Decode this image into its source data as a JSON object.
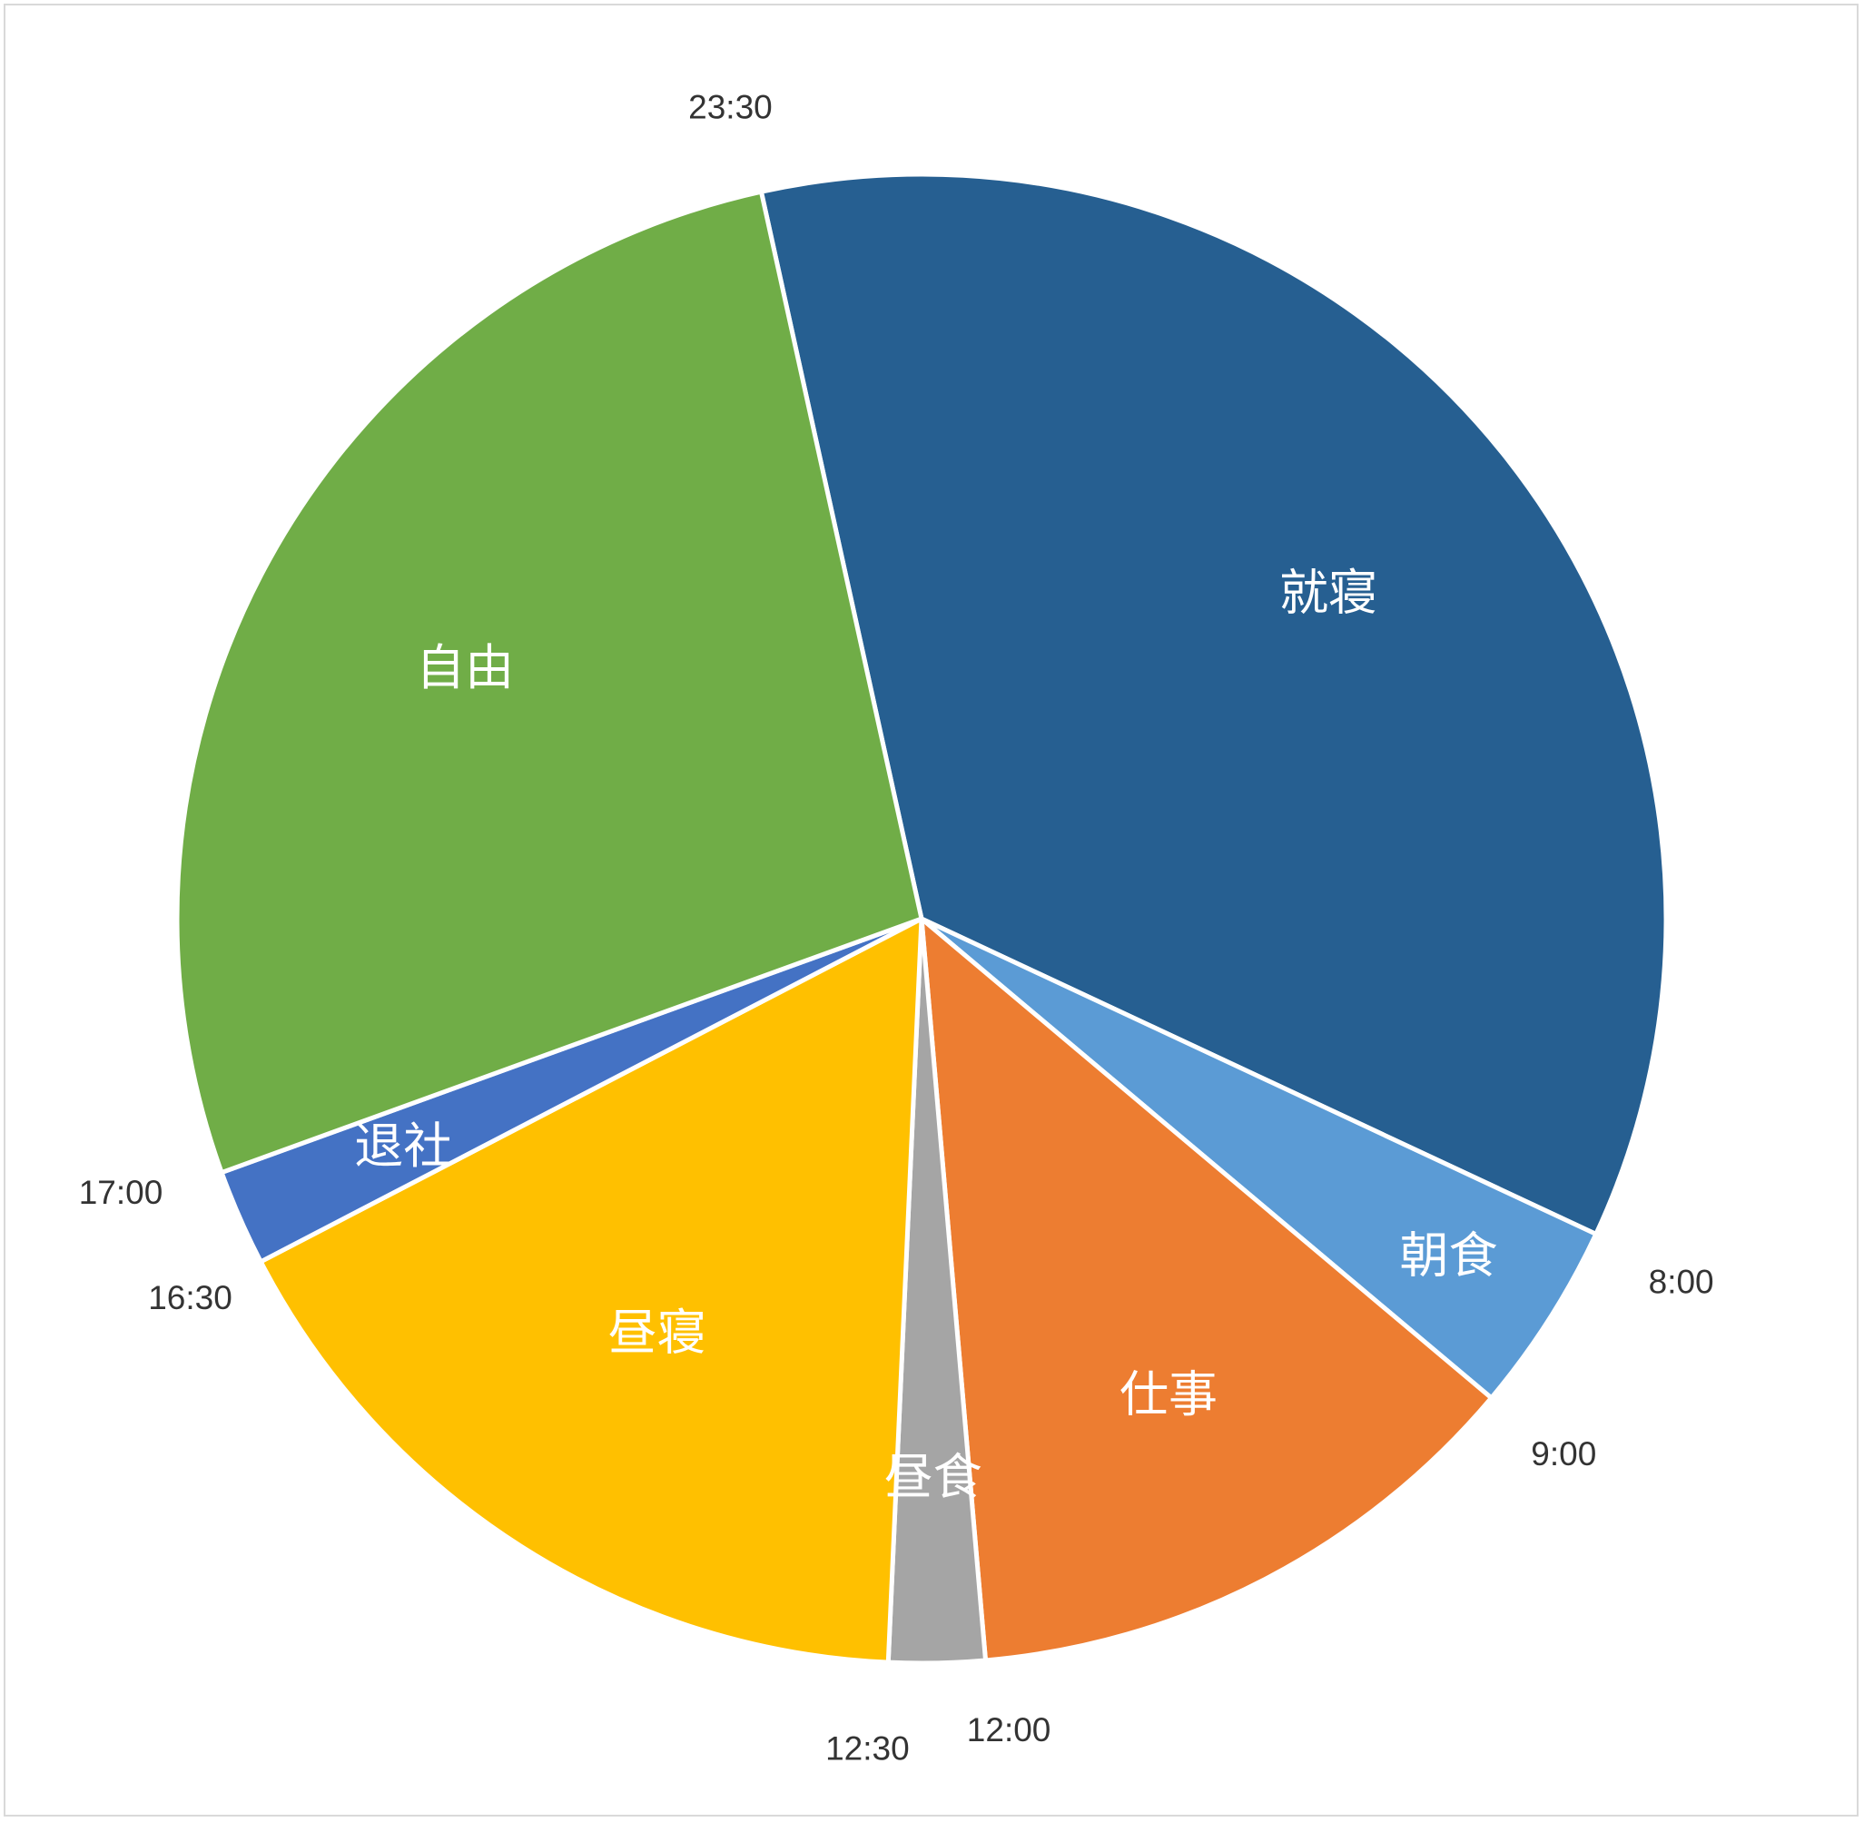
{
  "chart_data": {
    "type": "pie",
    "start_time": "23:30",
    "slices": [
      {
        "label": "就寝",
        "start": "23:30",
        "end": "8:00",
        "hours": 8.5,
        "color": "#265f91"
      },
      {
        "label": "朝食",
        "start": "8:00",
        "end": "9:00",
        "hours": 1.0,
        "color": "#5b9bd5"
      },
      {
        "label": "仕事",
        "start": "9:00",
        "end": "12:00",
        "hours": 3.0,
        "color": "#ed7d31"
      },
      {
        "label": "昼食",
        "start": "12:00",
        "end": "12:30",
        "hours": 0.5,
        "color": "#a5a5a5"
      },
      {
        "label": "昼寝",
        "start": "12:30",
        "end": "16:30",
        "hours": 4.0,
        "color": "#ffc000"
      },
      {
        "label": "退社",
        "start": "16:30",
        "end": "17:00",
        "hours": 0.5,
        "color": "#4472c4"
      },
      {
        "label": "自由",
        "start": "17:00",
        "end": "23:30",
        "hours": 6.5,
        "color": "#70ad47"
      }
    ],
    "boundary_labels": [
      "23:30",
      "8:00",
      "9:00",
      "12:00",
      "12:30",
      "16:30",
      "17:00"
    ],
    "legend": "none"
  }
}
